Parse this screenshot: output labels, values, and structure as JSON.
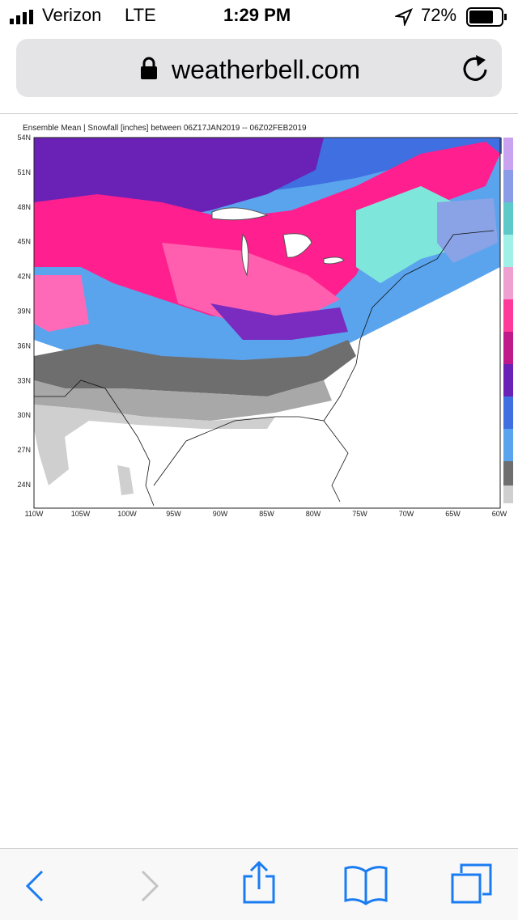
{
  "status_bar": {
    "carrier": "Verizon",
    "network": "LTE",
    "time": "1:29 PM",
    "battery": "72%"
  },
  "address_bar": {
    "url": "weatherbell.com"
  },
  "map": {
    "title": "Ensemble Mean | Snowfall [inches] between 06Z17JAN2019 -- 06Z02FEB2019",
    "lat_labels": [
      "54N",
      "51N",
      "48N",
      "45N",
      "42N",
      "39N",
      "36N",
      "33N",
      "30N",
      "27N",
      "24N"
    ],
    "lon_labels": [
      "110W",
      "105W",
      "100W",
      "95W",
      "90W",
      "85W",
      "80W",
      "75W",
      "70W",
      "65W",
      "60W"
    ]
  }
}
